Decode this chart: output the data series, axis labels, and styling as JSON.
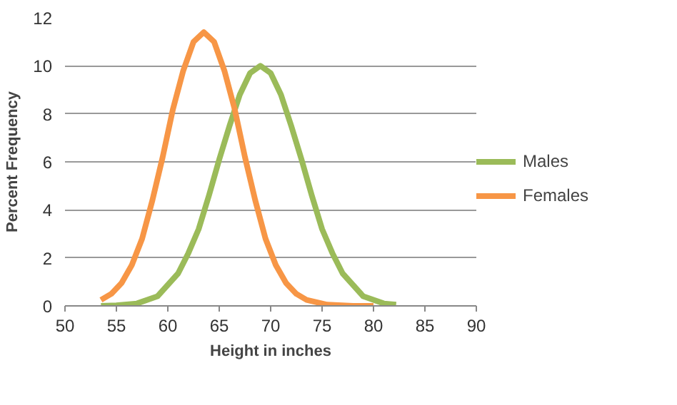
{
  "chart_data": {
    "type": "line",
    "xlabel": "Height in inches",
    "ylabel": "Percent Frequency",
    "xlim": [
      50,
      90
    ],
    "xticks": [
      50,
      55,
      60,
      65,
      70,
      75,
      80,
      85,
      90
    ],
    "ylim": [
      0,
      12
    ],
    "yticks": [
      0,
      2,
      4,
      6,
      8,
      10,
      12
    ],
    "grid": "y",
    "legend": "right",
    "marker": "none",
    "line_style": "solid",
    "series": [
      {
        "name": "Males",
        "color": "#9bbb59",
        "x": [
          53.5,
          55,
          57,
          59,
          61,
          62,
          63,
          64,
          65,
          66,
          67,
          68,
          69,
          70,
          71,
          72,
          73,
          74,
          75,
          76,
          77,
          79,
          81,
          82.2
        ],
        "values": [
          0,
          0.02,
          0.1,
          0.4,
          1.35,
          2.2,
          3.2,
          4.6,
          6.1,
          7.5,
          8.8,
          9.7,
          10,
          9.7,
          8.8,
          7.5,
          6.1,
          4.6,
          3.2,
          2.2,
          1.35,
          0.4,
          0.1,
          0.05
        ]
      },
      {
        "name": "Females",
        "color": "#f79646",
        "x": [
          53.5,
          54.5,
          55.5,
          56.5,
          57.5,
          58.5,
          59.5,
          60.5,
          61.5,
          62.5,
          63.5,
          64.5,
          65.5,
          66.5,
          67.5,
          68.5,
          69.5,
          70.5,
          71.5,
          72.5,
          73.5,
          75.5,
          78,
          80
        ],
        "values": [
          0.25,
          0.5,
          0.95,
          1.7,
          2.8,
          4.4,
          6.2,
          8.2,
          9.8,
          11,
          11.4,
          11,
          9.8,
          8.2,
          6.2,
          4.4,
          2.8,
          1.7,
          0.95,
          0.5,
          0.25,
          0.05,
          0,
          0
        ]
      }
    ]
  }
}
